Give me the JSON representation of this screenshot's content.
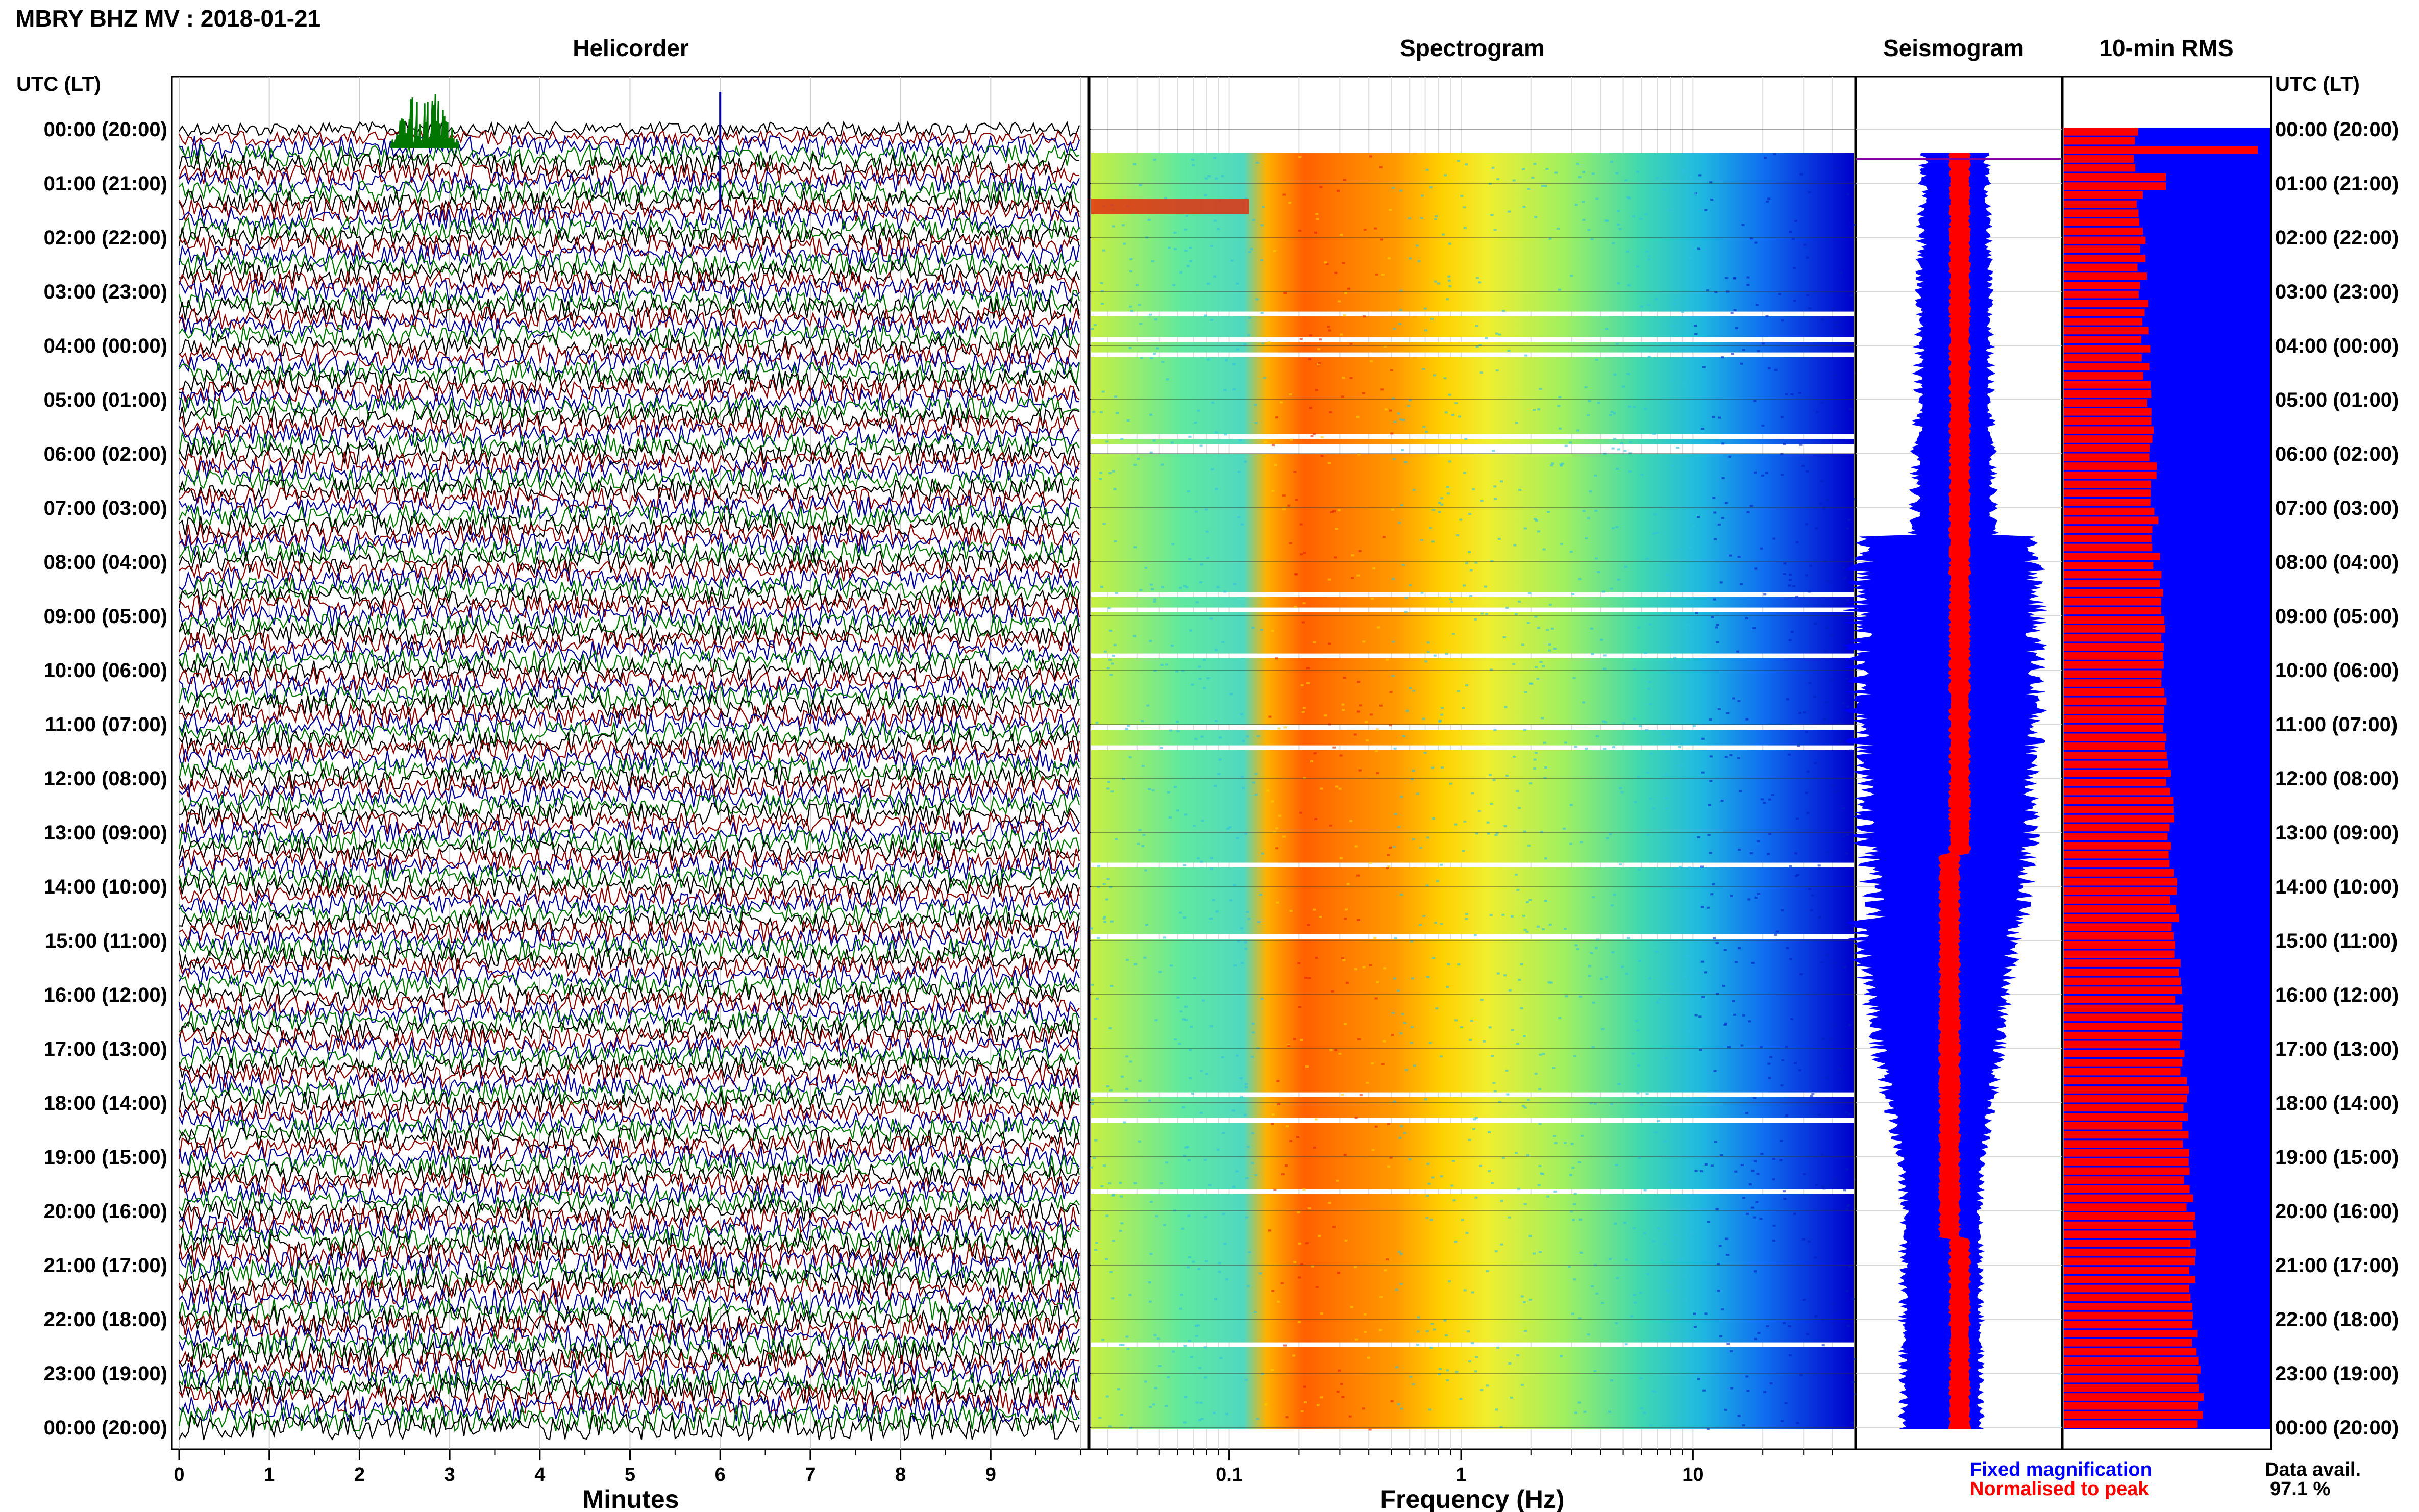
{
  "header": {
    "title": "MBRY BHZ MV : 2018-01-21",
    "utc_lt_left": "UTC (LT)",
    "utc_lt_right": "UTC (LT)"
  },
  "panels": {
    "helicorder_title": "Helicorder",
    "spectrogram_title": "Spectrogram",
    "seismogram_title": "Seismogram",
    "rms_title": "10-min RMS"
  },
  "legend": {
    "fixed": "Fixed magnification",
    "normalised": "Normalised to peak",
    "data_avail_label": "Data avail.",
    "data_avail_value": "97.1 %"
  },
  "colors": {
    "blue": "#0000ff",
    "red": "#ff0000",
    "green": "#007700",
    "darkred": "#8b0000",
    "navy": "#000099",
    "black": "#000000"
  },
  "chart_data": [
    {
      "type": "line",
      "panel": "helicorder",
      "xlabel": "Minutes",
      "x_ticks": [
        "0",
        "1",
        "2",
        "3",
        "4",
        "5",
        "6",
        "7",
        "8",
        "9"
      ],
      "xlim": [
        0,
        10
      ],
      "row_labels": [
        "00:00 (20:00)",
        "01:00 (21:00)",
        "02:00 (22:00)",
        "03:00 (23:00)",
        "04:00 (00:00)",
        "05:00 (01:00)",
        "06:00 (02:00)",
        "07:00 (03:00)",
        "08:00 (04:00)",
        "09:00 (05:00)",
        "10:00 (06:00)",
        "11:00 (07:00)",
        "12:00 (08:00)",
        "13:00 (09:00)",
        "14:00 (10:00)",
        "15:00 (11:00)",
        "16:00 (12:00)",
        "17:00 (13:00)",
        "18:00 (14:00)",
        "19:00 (15:00)",
        "20:00 (16:00)",
        "21:00 (17:00)",
        "22:00 (18:00)",
        "23:00 (19:00)",
        "00:00 (20:00)"
      ],
      "trace_colors": [
        "black",
        "darkred",
        "navy",
        "green"
      ]
    },
    {
      "type": "heatmap",
      "panel": "spectrogram",
      "xlabel": "Frequency (Hz)",
      "x_scale": "log",
      "x_ticks": [
        "0.1",
        "1",
        "10"
      ],
      "xlim": [
        0.025,
        50
      ],
      "peak_band_hz": [
        0.14,
        0.5
      ]
    },
    {
      "type": "area",
      "panel": "seismogram",
      "series": [
        "Fixed magnification",
        "Normalised to peak"
      ],
      "series_colors": [
        "blue",
        "red"
      ]
    },
    {
      "type": "bar",
      "panel": "10-min RMS",
      "orientation": "horizontal",
      "bar_count": 144,
      "value_trend": "increasing through the day, spike near 00:30 UTC",
      "colors": [
        "red",
        "blue"
      ]
    }
  ]
}
